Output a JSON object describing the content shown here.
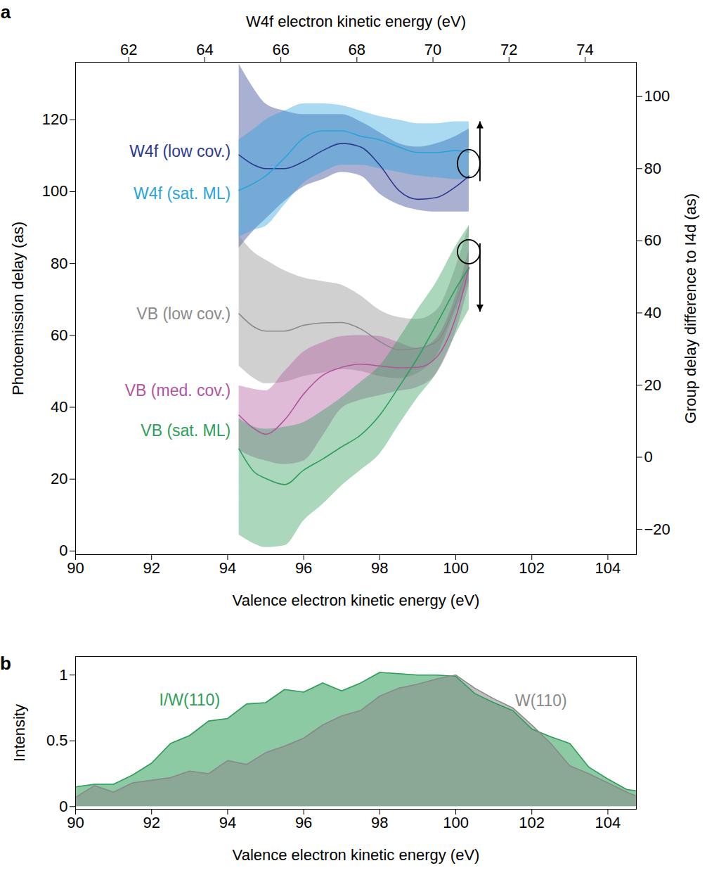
{
  "chart_data": [
    {
      "type": "line",
      "panel": "a",
      "x_label": "Valence electron kinetic energy (eV)",
      "x2_label": "W4f electron kinetic energy (eV)",
      "y_label": "Photoemission delay (as)",
      "y2_label": "Group delay difference to I4d (as)",
      "xlim": [
        90,
        104.75
      ],
      "xticks": [
        90,
        92,
        94,
        96,
        98,
        100,
        102,
        104
      ],
      "x2lim": [
        60.6,
        75.35
      ],
      "x2ticks": [
        62,
        64,
        66,
        68,
        70,
        72,
        74
      ],
      "ylim": [
        -1,
        136
      ],
      "yticks": [
        0,
        20,
        40,
        60,
        80,
        100,
        120
      ],
      "y2lim": [
        -27,
        109.5
      ],
      "y2ticks": [
        {
          "value": -20,
          "label": "−20"
        },
        0,
        20,
        40,
        60,
        80,
        100
      ],
      "grid": false,
      "x": [
        94.3,
        94.7,
        95,
        95.5,
        96,
        96.5,
        97,
        97.5,
        98,
        98.5,
        99,
        99.5,
        100,
        100.35
      ],
      "series": [
        {
          "name": "W4f (low cov.)",
          "color": "#2b3a8f",
          "axis": "y2",
          "values": [
            83.8,
            81,
            80,
            80,
            82,
            85,
            87,
            86,
            81,
            74,
            71.5,
            72,
            75,
            78
          ],
          "lower": [
            58,
            63,
            66,
            71,
            75,
            77,
            79,
            78,
            73,
            70,
            68.5,
            68,
            68,
            68
          ],
          "upper": [
            109,
            102,
            98,
            96,
            95,
            95,
            95,
            93,
            90,
            87,
            86,
            87,
            89,
            91
          ]
        },
        {
          "name": "W4f (sat. ML)",
          "color": "#29a3dc",
          "axis": "y2",
          "values": [
            74,
            76,
            78,
            83,
            88.5,
            90.5,
            90.5,
            89,
            88,
            86,
            84.5,
            84.5,
            85,
            84.6
          ],
          "lower": [
            61,
            63,
            64,
            70,
            76,
            79,
            81,
            81,
            80,
            79,
            78,
            77.5,
            77,
            77
          ],
          "upper": [
            88,
            91,
            93.5,
            96,
            98,
            98,
            97.5,
            96,
            94.5,
            93.5,
            92.5,
            92.5,
            93,
            93
          ]
        },
        {
          "name": "VB (low cov.)",
          "color": "#8a8a8a",
          "axis": "y",
          "values": [
            66,
            62.3,
            61.2,
            61.2,
            62.8,
            63.5,
            63.6,
            61.8,
            58.3,
            56,
            56.4,
            58.3,
            69,
            80
          ],
          "lower": [
            51.5,
            48,
            46.6,
            47,
            48.6,
            49.5,
            50.5,
            50,
            48.6,
            48,
            49.5,
            54.4,
            67,
            75
          ],
          "upper": [
            87.7,
            83,
            81,
            78,
            76,
            75,
            74,
            71,
            67,
            65,
            64.5,
            67,
            79,
            90.6
          ]
        },
        {
          "name": "VB (med. cov.)",
          "color": "#b0559e",
          "axis": "y",
          "values": [
            37.8,
            34,
            32.5,
            36.5,
            43.7,
            48.9,
            51.1,
            52,
            51.5,
            51,
            51.1,
            54,
            65,
            78.9
          ],
          "lower": [
            28,
            26,
            25.1,
            24.1,
            25.1,
            32,
            39.7,
            42,
            43.3,
            44.5,
            45.6,
            49.5,
            61,
            74
          ],
          "upper": [
            46,
            45,
            44.6,
            50,
            55.4,
            58,
            59.7,
            60,
            59.7,
            58,
            56.4,
            59.3,
            71,
            83.8
          ]
        },
        {
          "name": "VB (sat. ML)",
          "color": "#2e9e5a",
          "axis": "y",
          "values": [
            28.4,
            22,
            20.2,
            18.5,
            22.5,
            25.6,
            29,
            32.3,
            37.8,
            45.6,
            53.8,
            63.2,
            73,
            78.9
          ],
          "lower": [
            4.5,
            2,
            1,
            1.5,
            8.4,
            13,
            18.2,
            22.5,
            27,
            35,
            42.7,
            49.5,
            60.3,
            67.2
          ],
          "upper": [
            36.8,
            34.5,
            33.9,
            34.5,
            35.8,
            39,
            42.7,
            47,
            51.5,
            59,
            67.2,
            75,
            84.8,
            90.6
          ]
        }
      ]
    },
    {
      "type": "area",
      "panel": "b",
      "x_label": "Valence electron kinetic energy (eV)",
      "y_label": "Intensity",
      "xlim": [
        90,
        104.75
      ],
      "xticks": [
        90,
        92,
        94,
        96,
        98,
        100,
        102,
        104
      ],
      "ylim": [
        -0.02,
        1.14
      ],
      "yticks": [
        0,
        0.5,
        1
      ],
      "grid": false,
      "x": [
        90,
        90.5,
        91,
        91.5,
        92,
        92.5,
        93,
        93.5,
        94,
        94.5,
        95,
        95.5,
        96,
        96.5,
        97,
        97.5,
        98,
        98.5,
        99,
        99.5,
        100,
        100.5,
        101,
        101.5,
        102,
        102.5,
        103,
        103.5,
        104,
        104.5,
        104.75
      ],
      "series": [
        {
          "name": "I/W(110)",
          "color": "#2e9e5a",
          "values": [
            0.15,
            0.17,
            0.17,
            0.24,
            0.33,
            0.48,
            0.54,
            0.65,
            0.67,
            0.78,
            0.79,
            0.89,
            0.87,
            0.94,
            0.88,
            0.94,
            1.02,
            1.01,
            1.0,
            1.0,
            0.99,
            0.86,
            0.79,
            0.73,
            0.59,
            0.53,
            0.48,
            0.3,
            0.21,
            0.13,
            0.12
          ]
        },
        {
          "name": "W(110)",
          "color": "#8a8a8a",
          "values": [
            0.07,
            0.16,
            0.11,
            0.18,
            0.2,
            0.22,
            0.27,
            0.25,
            0.35,
            0.32,
            0.41,
            0.46,
            0.52,
            0.62,
            0.69,
            0.73,
            0.84,
            0.9,
            0.93,
            0.97,
            1.0,
            0.9,
            0.82,
            0.75,
            0.62,
            0.48,
            0.31,
            0.25,
            0.18,
            0.11,
            0.08
          ]
        }
      ]
    }
  ]
}
